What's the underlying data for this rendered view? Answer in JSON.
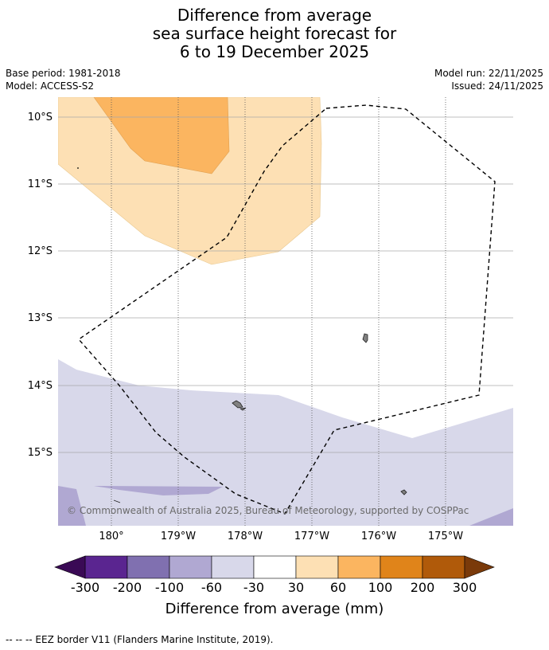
{
  "title": {
    "line1": "Difference from average",
    "line2": "sea surface height forecast for",
    "line3": "6 to 19 December 2025"
  },
  "meta": {
    "base_period": "Base period: 1981-2018",
    "model": "Model: ACCESS-S2",
    "model_run": "Model run: 22/11/2025",
    "issued": "Issued: 24/11/2025"
  },
  "map": {
    "lat_labels": [
      "10°S",
      "11°S",
      "12°S",
      "13°S",
      "14°S",
      "15°S"
    ],
    "lon_labels": [
      "180°",
      "179°W",
      "178°W",
      "177°W",
      "176°W",
      "175°W"
    ],
    "copyright": "© Commonwealth of Australia 2025, Bureau of Meteorology, supported by COSPPac"
  },
  "colorbar": {
    "ticks": [
      "-300",
      "-200",
      "-100",
      "-60",
      "-30",
      "30",
      "60",
      "100",
      "200",
      "300"
    ],
    "colors": [
      "#5a2590",
      "#8070b0",
      "#b0a8d2",
      "#d8d8ea",
      "#ffffff",
      "#fde0b4",
      "#fbb560",
      "#e0841a",
      "#b05a0a"
    ],
    "extend_low_color": "#3a0a55",
    "extend_high_color": "#7a3a0a",
    "label": "Difference from average (mm)"
  },
  "legend": {
    "eez": "--  --  -- EEZ border V11 (Flanders Marine Institute, 2019)."
  }
}
